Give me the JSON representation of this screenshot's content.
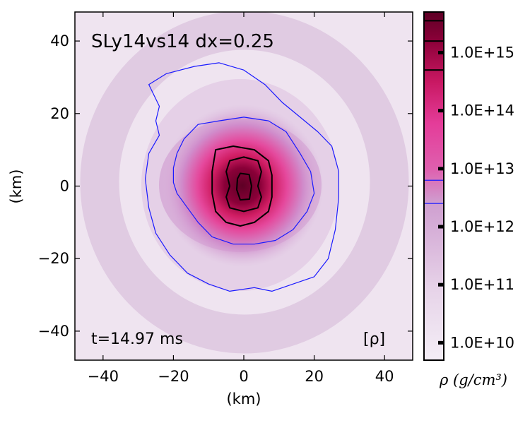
{
  "chart_data": {
    "type": "heatmap",
    "title": "SLy14vs14 dx=0.25",
    "time_label": "t=14.97 ms",
    "field_label": "[ρ]",
    "xlabel": "(km)",
    "ylabel": "(km)",
    "xlim": [
      -48,
      48
    ],
    "ylim": [
      -48,
      48
    ],
    "x_ticks": [
      -40,
      -20,
      0,
      20,
      40
    ],
    "y_ticks": [
      -40,
      -20,
      0,
      20,
      40
    ],
    "x_tick_labels": [
      "−40",
      "−20",
      "0",
      "20",
      "40"
    ],
    "y_tick_labels": [
      "−40",
      "−20",
      "0",
      "20",
      "40"
    ],
    "colorbar": {
      "title": "ρ (g/cm³)",
      "scale": "log10",
      "range_log10": [
        9.7,
        15.7
      ],
      "tick_log10": [
        10,
        11,
        12,
        13,
        14,
        15
      ],
      "tick_labels": [
        "1.0E+10",
        "1.0E+11",
        "1.0E+12",
        "1.0E+13",
        "1.0E+14",
        "1.0E+15"
      ],
      "colormap": [
        "#f4eef6",
        "#dab8dc",
        "#cc82c4",
        "#e43c99",
        "#d01d63",
        "#8a0038",
        "#5e0025"
      ],
      "black_contour_levels_log10": [
        14.7,
        15.2,
        15.55
      ],
      "blue_contour_levels_log10": [
        12.4,
        12.8
      ]
    },
    "contours": [
      {
        "name": "outer-blue",
        "color": "#1a1aff",
        "points": [
          [
            -27,
            28
          ],
          [
            -22,
            31
          ],
          [
            -14,
            33
          ],
          [
            -7,
            34
          ],
          [
            0,
            32
          ],
          [
            6,
            28
          ],
          [
            11,
            23
          ],
          [
            16,
            19
          ],
          [
            21,
            15
          ],
          [
            25,
            11
          ],
          [
            27,
            4
          ],
          [
            27,
            -3
          ],
          [
            26,
            -12
          ],
          [
            24,
            -20
          ],
          [
            20,
            -25
          ],
          [
            14,
            -27
          ],
          [
            8,
            -29
          ],
          [
            3,
            -28
          ],
          [
            -4,
            -29
          ],
          [
            -10,
            -27
          ],
          [
            -16,
            -24
          ],
          [
            -21,
            -19
          ],
          [
            -25,
            -13
          ],
          [
            -27,
            -6
          ],
          [
            -28,
            2
          ],
          [
            -27,
            9
          ],
          [
            -24,
            14
          ],
          [
            -25,
            18
          ],
          [
            -24,
            22
          ]
        ]
      },
      {
        "name": "inner-blue",
        "color": "#1a1aff",
        "points": [
          [
            -20,
            5
          ],
          [
            -19,
            9
          ],
          [
            -17,
            13
          ],
          [
            -13,
            17
          ],
          [
            -7,
            18
          ],
          [
            0,
            19
          ],
          [
            7,
            18
          ],
          [
            12,
            15
          ],
          [
            16,
            9
          ],
          [
            19,
            4
          ],
          [
            20,
            -2
          ],
          [
            18,
            -7
          ],
          [
            14,
            -12
          ],
          [
            9,
            -15
          ],
          [
            3,
            -16
          ],
          [
            -3,
            -16
          ],
          [
            -9,
            -14
          ],
          [
            -13,
            -10
          ],
          [
            -16,
            -6
          ],
          [
            -19,
            -2
          ],
          [
            -20,
            1
          ]
        ]
      },
      {
        "name": "outer-black",
        "color": "#000000",
        "points": [
          [
            -8,
            10
          ],
          [
            -3,
            11
          ],
          [
            3,
            10
          ],
          [
            7,
            7
          ],
          [
            8,
            3
          ],
          [
            8,
            -3
          ],
          [
            7,
            -7
          ],
          [
            3,
            -10
          ],
          [
            -1,
            -11
          ],
          [
            -5,
            -10
          ],
          [
            -8,
            -7
          ],
          [
            -9,
            -2
          ],
          [
            -9,
            4
          ]
        ]
      },
      {
        "name": "middle-black",
        "color": "#000000",
        "points": [
          [
            -4,
            7
          ],
          [
            0,
            8
          ],
          [
            4,
            7
          ],
          [
            5,
            4
          ],
          [
            4,
            0
          ],
          [
            5,
            -3
          ],
          [
            4,
            -6
          ],
          [
            0,
            -7
          ],
          [
            -4,
            -6
          ],
          [
            -5,
            -3
          ],
          [
            -4,
            0
          ],
          [
            -5,
            4
          ]
        ]
      },
      {
        "name": "inner-black",
        "color": "#000000",
        "points": [
          [
            -1,
            3.5
          ],
          [
            1.5,
            3.2
          ],
          [
            2.2,
            0
          ],
          [
            1.6,
            -3.6
          ],
          [
            -1,
            -3.8
          ],
          [
            -2,
            -1
          ],
          [
            -1.8,
            2
          ]
        ]
      }
    ]
  }
}
